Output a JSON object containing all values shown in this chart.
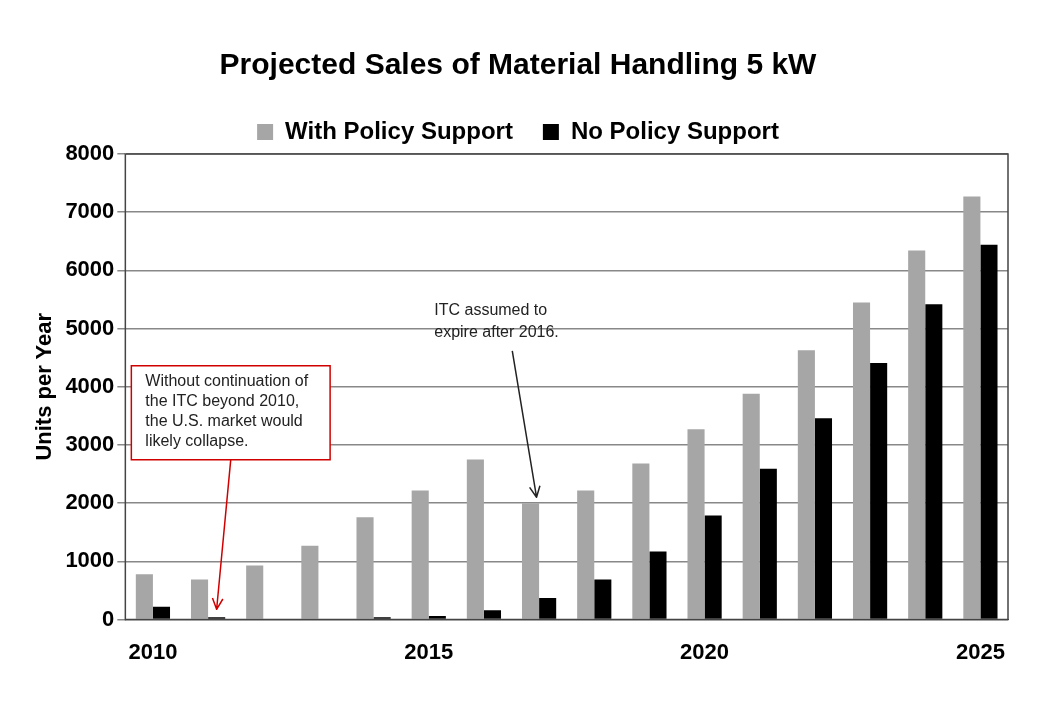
{
  "chart_data": {
    "type": "bar",
    "title": "Projected Sales of Material Handling 5 kW",
    "ylabel": "Units per Year",
    "categories": [
      "2010",
      null,
      null,
      null,
      null,
      "2015",
      null,
      null,
      null,
      null,
      "2020",
      null,
      null,
      null,
      null,
      "2025"
    ],
    "series": [
      {
        "name": "With Policy Support",
        "color": "#a6a6a6",
        "values": [
          780,
          690,
          930,
          1270,
          1760,
          2220,
          2750,
          2000,
          2220,
          2680,
          3270,
          3880,
          4630,
          5450,
          6340,
          7270
        ]
      },
      {
        "name": "No Policy Support",
        "color": "#000000",
        "values": [
          220,
          40,
          null,
          null,
          40,
          60,
          160,
          370,
          690,
          1170,
          1790,
          2590,
          3460,
          4410,
          5420,
          6440
        ]
      }
    ],
    "ylim": [
      0,
      8000
    ],
    "yticks": [
      0,
      1000,
      2000,
      3000,
      4000,
      5000,
      6000,
      7000,
      8000
    ],
    "grid": "y",
    "legend": "top",
    "annotations": [
      "Without continuation of the ITC beyond 2010, the U.S. market would likely collapse.",
      "ITC assumed to expire after 2016."
    ]
  }
}
